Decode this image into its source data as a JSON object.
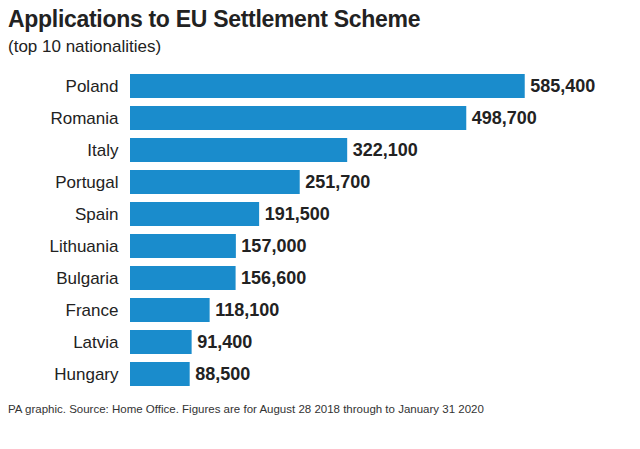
{
  "chart_data": {
    "type": "bar",
    "orientation": "horizontal",
    "title": "Applications to EU Settlement Scheme",
    "subtitle": "(top 10 nationalities)",
    "caption": "PA graphic. Source: Home Office. Figures are for August 28 2018 through to January 31 2020",
    "categories": [
      "Poland",
      "Romania",
      "Italy",
      "Portugal",
      "Spain",
      "Lithuania",
      "Bulgaria",
      "France",
      "Latvia",
      "Hungary"
    ],
    "values": [
      585400,
      498700,
      322100,
      251700,
      191500,
      157000,
      156600,
      118100,
      91400,
      88500
    ],
    "value_labels": [
      "585,400",
      "498,700",
      "322,100",
      "251,700",
      "191,500",
      "157,000",
      "156,600",
      "118,100",
      "91,400",
      "88,500"
    ],
    "color": "#1a8ccc",
    "xlim": [
      0,
      700000
    ],
    "data_labels": true,
    "tick_labels": "y",
    "grid": false
  }
}
